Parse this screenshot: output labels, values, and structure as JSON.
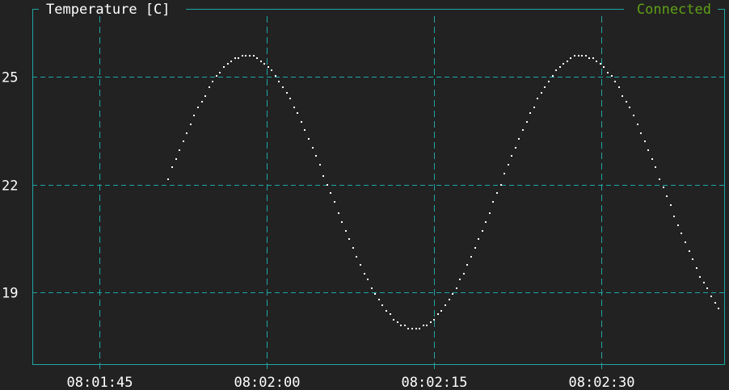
{
  "panel": {
    "title": "Temperature [C]",
    "status": "Connected"
  },
  "colors": {
    "background": "#222222",
    "frame": "#1fa6a6",
    "grid": "#1fa6a6",
    "series": "#ffffff",
    "text": "#ffffff",
    "status": "#5fa015"
  },
  "chart_data": {
    "type": "scatter",
    "title": "Temperature [C]",
    "xlabel": "",
    "ylabel": "",
    "x_tick_labels": [
      "08:01:45",
      "08:02:00",
      "08:02:15",
      "08:02:30"
    ],
    "x_ticks_seconds": [
      105,
      120,
      135,
      150
    ],
    "y_ticks": [
      19,
      22,
      25
    ],
    "xlim": [
      99,
      161
    ],
    "ylim": [
      17.0,
      26.9
    ],
    "grid": true,
    "series": [
      {
        "x_start": 111.2,
        "x_end": 160.5,
        "points": 150,
        "mean": 21.8,
        "amplitude": 3.8,
        "period": 30,
        "phase_peak_x": 118.2,
        "y_step": 0.08
      }
    ]
  }
}
